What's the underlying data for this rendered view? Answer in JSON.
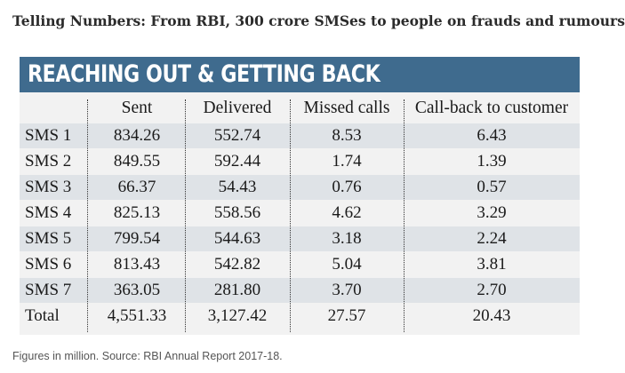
{
  "headline": "Telling Numbers: From RBI, 300 crore SMSes to people on frauds and rumours",
  "footnote": "Figures in million. Source: RBI Annual Report 2017-18.",
  "chart_data": {
    "type": "table",
    "title": "REACHING OUT & GETTING BACK",
    "columns": [
      "",
      "Sent",
      "Delivered",
      "Missed calls",
      "Call-back to customer"
    ],
    "rows": [
      {
        "label": "SMS 1",
        "sent": "834.26",
        "delivered": "552.74",
        "missed_calls": "8.53",
        "call_back": "6.43"
      },
      {
        "label": "SMS 2",
        "sent": "849.55",
        "delivered": "592.44",
        "missed_calls": "1.74",
        "call_back": "1.39"
      },
      {
        "label": "SMS 3",
        "sent": "66.37",
        "delivered": "54.43",
        "missed_calls": "0.76",
        "call_back": "0.57"
      },
      {
        "label": "SMS 4",
        "sent": "825.13",
        "delivered": "558.56",
        "missed_calls": "4.62",
        "call_back": "3.29"
      },
      {
        "label": "SMS 5",
        "sent": "799.54",
        "delivered": "544.63",
        "missed_calls": "3.18",
        "call_back": "2.24"
      },
      {
        "label": "SMS 6",
        "sent": "813.43",
        "delivered": "542.82",
        "missed_calls": "5.04",
        "call_back": "3.81"
      },
      {
        "label": "SMS 7",
        "sent": "363.05",
        "delivered": "281.80",
        "missed_calls": "3.70",
        "call_back": "2.70"
      },
      {
        "label": "Total",
        "sent": "4,551.33",
        "delivered": "3,127.42",
        "missed_calls": "27.57",
        "call_back": "20.43"
      }
    ],
    "colors": {
      "banner": "#3f6b8e",
      "card_background": "#f2f2f2",
      "row_shade": "#dfe3e7"
    }
  }
}
